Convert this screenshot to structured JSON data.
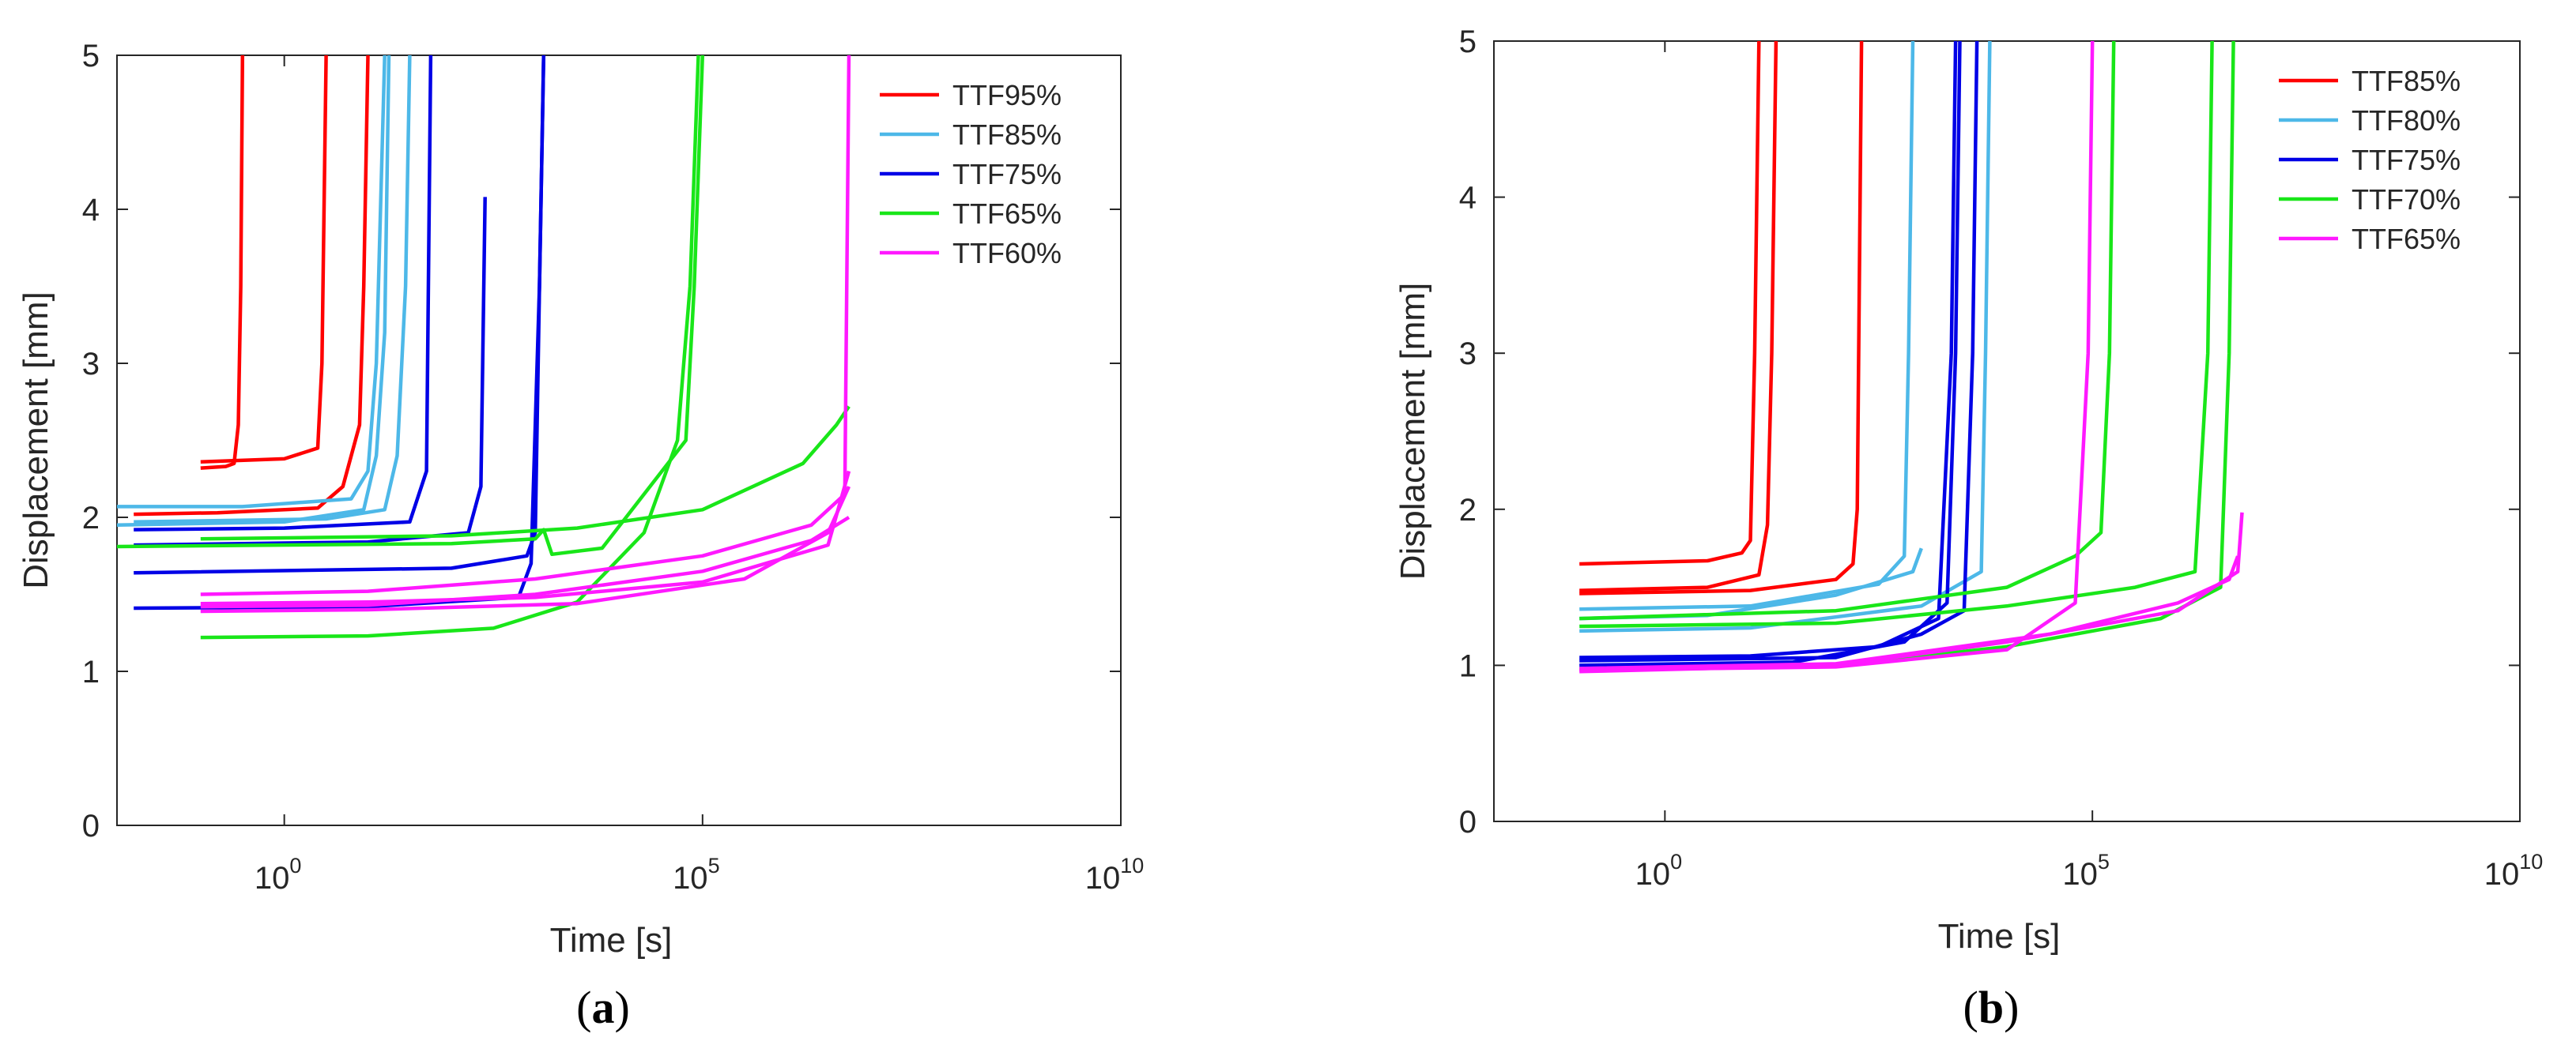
{
  "chart_data": [
    {
      "type": "line",
      "panel_label": {
        "open": "(",
        "letter": "a",
        "close": ")"
      },
      "xlabel": "Time [s]",
      "ylabel": "Displacement [mm]",
      "xscale": "log",
      "xlim_log10": [
        -2,
        10
      ],
      "ylim": [
        0,
        5
      ],
      "xticks": [
        {
          "base": "10",
          "exp": "0"
        },
        {
          "base": "10",
          "exp": "5"
        },
        {
          "base": "10",
          "exp": "10"
        }
      ],
      "yticks": [
        "0",
        "1",
        "2",
        "3",
        "4",
        "5"
      ],
      "legend_position": "top-right",
      "series": [
        {
          "name": "TTF95%",
          "color": "#ff0000",
          "curves": [
            {
              "x": [
                -1,
                -0.7,
                -0.6,
                -0.55,
                -0.52,
                -0.5
              ],
              "y": [
                2.32,
                2.33,
                2.35,
                2.6,
                3.5,
                5
              ]
            },
            {
              "x": [
                -1.8,
                -0.8,
                0.4,
                0.7,
                0.9,
                0.95,
                1.0
              ],
              "y": [
                2.02,
                2.03,
                2.06,
                2.2,
                2.6,
                3.5,
                5
              ]
            },
            {
              "x": [
                -1,
                0,
                0.4,
                0.45,
                0.5
              ],
              "y": [
                2.36,
                2.38,
                2.45,
                3.0,
                5
              ]
            }
          ]
        },
        {
          "name": "TTF85%",
          "color": "#4db8e8",
          "curves": [
            {
              "x": [
                -2,
                -0.5,
                0.8,
                1.0,
                1.1,
                1.2
              ],
              "y": [
                2.07,
                2.07,
                2.12,
                2.3,
                3.0,
                5
              ]
            },
            {
              "x": [
                -2,
                0,
                0.95,
                1.1,
                1.2,
                1.25
              ],
              "y": [
                1.95,
                1.97,
                2.05,
                2.4,
                3.2,
                5
              ]
            },
            {
              "x": [
                -1.8,
                0.5,
                1.2,
                1.35,
                1.45,
                1.5
              ],
              "y": [
                1.97,
                1.99,
                2.05,
                2.4,
                3.5,
                5
              ]
            }
          ]
        },
        {
          "name": "TTF75%",
          "color": "#0000e6",
          "curves": [
            {
              "x": [
                -1.8,
                0,
                1.5,
                1.7,
                1.75
              ],
              "y": [
                1.92,
                1.93,
                1.97,
                2.3,
                5
              ]
            },
            {
              "x": [
                -1.8,
                1,
                2.2,
                2.35,
                2.4
              ],
              "y": [
                1.82,
                1.84,
                1.9,
                2.2,
                4.08
              ]
            },
            {
              "x": [
                -1.8,
                2,
                2.9,
                3.0,
                3.05,
                3.1
              ],
              "y": [
                1.64,
                1.67,
                1.75,
                1.9,
                3.5,
                5
              ]
            },
            {
              "x": [
                -1.8,
                1,
                2.8,
                2.95,
                3.05,
                3.1
              ],
              "y": [
                1.41,
                1.42,
                1.48,
                1.7,
                3.5,
                5
              ]
            }
          ]
        },
        {
          "name": "TTF65%",
          "color": "#19e619",
          "curves": [
            {
              "x": [
                -2,
                2,
                3,
                3.1,
                3.2,
                3.8,
                4.8,
                4.9,
                5.0
              ],
              "y": [
                1.81,
                1.83,
                1.86,
                1.92,
                1.76,
                1.8,
                2.5,
                3.5,
                5
              ]
            },
            {
              "x": [
                -1,
                1,
                2.5,
                3.5,
                4.3,
                4.7,
                4.85,
                4.95
              ],
              "y": [
                1.22,
                1.23,
                1.28,
                1.45,
                1.9,
                2.5,
                3.5,
                5
              ]
            },
            {
              "x": [
                -1,
                2,
                3.5,
                5,
                6.2,
                6.6,
                6.75
              ],
              "y": [
                1.86,
                1.88,
                1.93,
                2.05,
                2.35,
                2.6,
                2.72
              ]
            }
          ]
        },
        {
          "name": "TTF60%",
          "color": "#ff19ff",
          "curves": [
            {
              "x": [
                -1,
                1,
                3,
                5,
                6.3,
                6.7,
                6.75
              ],
              "y": [
                1.5,
                1.52,
                1.6,
                1.75,
                1.95,
                2.15,
                5
              ]
            },
            {
              "x": [
                -1,
                1,
                3,
                5,
                6.5,
                6.75
              ],
              "y": [
                1.44,
                1.45,
                1.48,
                1.58,
                1.82,
                2.3
              ]
            },
            {
              "x": [
                -1,
                1,
                3.5,
                5.5,
                6.5,
                6.75
              ],
              "y": [
                1.39,
                1.4,
                1.44,
                1.6,
                1.9,
                2.2
              ]
            },
            {
              "x": [
                -1,
                1,
                3,
                5,
                6.3,
                6.75
              ],
              "y": [
                1.42,
                1.43,
                1.5,
                1.65,
                1.85,
                2.0
              ]
            }
          ]
        }
      ]
    },
    {
      "type": "line",
      "panel_label": {
        "open": "(",
        "letter": "b",
        "close": ")"
      },
      "xlabel": "Time [s]",
      "ylabel": "Displacement [mm]",
      "xscale": "log",
      "xlim_log10": [
        -2,
        10
      ],
      "ylim": [
        0,
        5
      ],
      "xticks": [
        {
          "base": "10",
          "exp": "0"
        },
        {
          "base": "10",
          "exp": "5"
        },
        {
          "base": "10",
          "exp": "10"
        }
      ],
      "yticks": [
        "0",
        "1",
        "2",
        "3",
        "4",
        "5"
      ],
      "legend_position": "top-right",
      "series": [
        {
          "name": "TTF85%",
          "color": "#ff0000",
          "curves": [
            {
              "x": [
                -1,
                0.5,
                0.9,
                1.0,
                1.05,
                1.1
              ],
              "y": [
                1.65,
                1.67,
                1.72,
                1.8,
                3.0,
                5
              ]
            },
            {
              "x": [
                -1,
                0.5,
                1.1,
                1.2,
                1.25,
                1.3
              ],
              "y": [
                1.48,
                1.5,
                1.58,
                1.9,
                3.0,
                5
              ]
            },
            {
              "x": [
                -1,
                1,
                2.0,
                2.2,
                2.25,
                2.3
              ],
              "y": [
                1.46,
                1.48,
                1.55,
                1.65,
                2.0,
                5
              ]
            }
          ]
        },
        {
          "name": "TTF80%",
          "color": "#4db8e8",
          "curves": [
            {
              "x": [
                -1,
                1,
                2.5,
                2.8,
                2.85,
                2.9
              ],
              "y": [
                1.36,
                1.38,
                1.52,
                1.7,
                3.0,
                5
              ]
            },
            {
              "x": [
                -1,
                1,
                3,
                3.7,
                3.75,
                3.8
              ],
              "y": [
                1.22,
                1.24,
                1.38,
                1.6,
                3.0,
                5
              ]
            },
            {
              "x": [
                -1,
                0.5,
                2,
                2.9,
                3.0
              ],
              "y": [
                1.3,
                1.32,
                1.45,
                1.6,
                1.75
              ]
            }
          ]
        },
        {
          "name": "TTF75%",
          "color": "#0000e6",
          "curves": [
            {
              "x": [
                -1,
                1,
                2.5,
                3.2,
                3.35,
                3.4
              ],
              "y": [
                1.05,
                1.06,
                1.12,
                1.3,
                3.0,
                5
              ]
            },
            {
              "x": [
                -1,
                1.5,
                2.8,
                3.3,
                3.4,
                3.45
              ],
              "y": [
                1.0,
                1.02,
                1.15,
                1.4,
                3.0,
                5
              ]
            },
            {
              "x": [
                -1,
                2,
                3,
                3.5,
                3.6,
                3.65
              ],
              "y": [
                1.03,
                1.05,
                1.2,
                1.35,
                3.0,
                5
              ]
            }
          ]
        },
        {
          "name": "TTF70%",
          "color": "#19e619",
          "curves": [
            {
              "x": [
                -1,
                2,
                4,
                4.8,
                5.1,
                5.2,
                5.25
              ],
              "y": [
                1.3,
                1.35,
                1.5,
                1.7,
                1.85,
                3.0,
                5
              ]
            },
            {
              "x": [
                -1,
                2,
                4,
                5.5,
                6.2,
                6.35,
                6.4
              ],
              "y": [
                1.25,
                1.27,
                1.38,
                1.5,
                1.6,
                3.0,
                5
              ]
            },
            {
              "x": [
                -1,
                2,
                4,
                5.8,
                6.5,
                6.6,
                6.65
              ],
              "y": [
                0.98,
                1.0,
                1.12,
                1.3,
                1.5,
                3.0,
                5
              ]
            }
          ]
        },
        {
          "name": "TTF65%",
          "color": "#ff19ff",
          "curves": [
            {
              "x": [
                -1,
                2,
                4,
                4.8,
                4.95,
                5.0
              ],
              "y": [
                0.97,
                0.99,
                1.1,
                1.4,
                3.0,
                5
              ]
            },
            {
              "x": [
                -1,
                2,
                4,
                6,
                6.7,
                6.75
              ],
              "y": [
                0.96,
                1.0,
                1.15,
                1.35,
                1.6,
                1.98
              ]
            },
            {
              "x": [
                -1,
                2,
                4.5,
                6,
                6.6,
                6.7
              ],
              "y": [
                0.98,
                1.01,
                1.2,
                1.4,
                1.55,
                1.7
              ]
            }
          ]
        }
      ]
    }
  ]
}
